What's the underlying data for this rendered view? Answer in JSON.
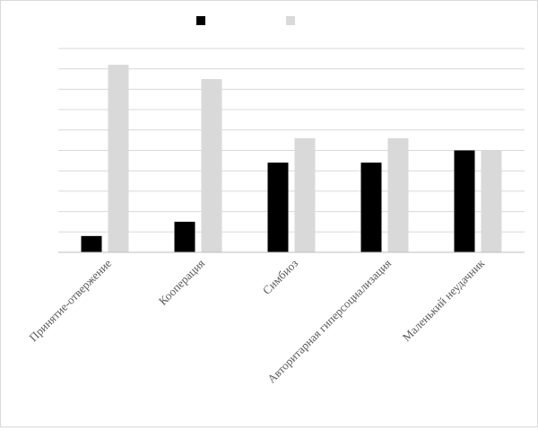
{
  "chart_data": {
    "type": "bar",
    "categories": [
      "Принятие-отвержение",
      "Кооперация",
      "Симбиоз",
      "Авторитарная гиперсоциализация",
      "Маленький неудачник"
    ],
    "series": [
      {
        "values": [
          0.8,
          1.5,
          4.4,
          4.4,
          5.0
        ],
        "color": "#000000"
      },
      {
        "values": [
          9.2,
          8.5,
          5.6,
          5.6,
          5.0
        ],
        "color": "#d9d9d9"
      }
    ],
    "ylim": [
      0,
      10
    ],
    "grid": true,
    "legend": "top-center",
    "x_label_rotation": -45
  }
}
